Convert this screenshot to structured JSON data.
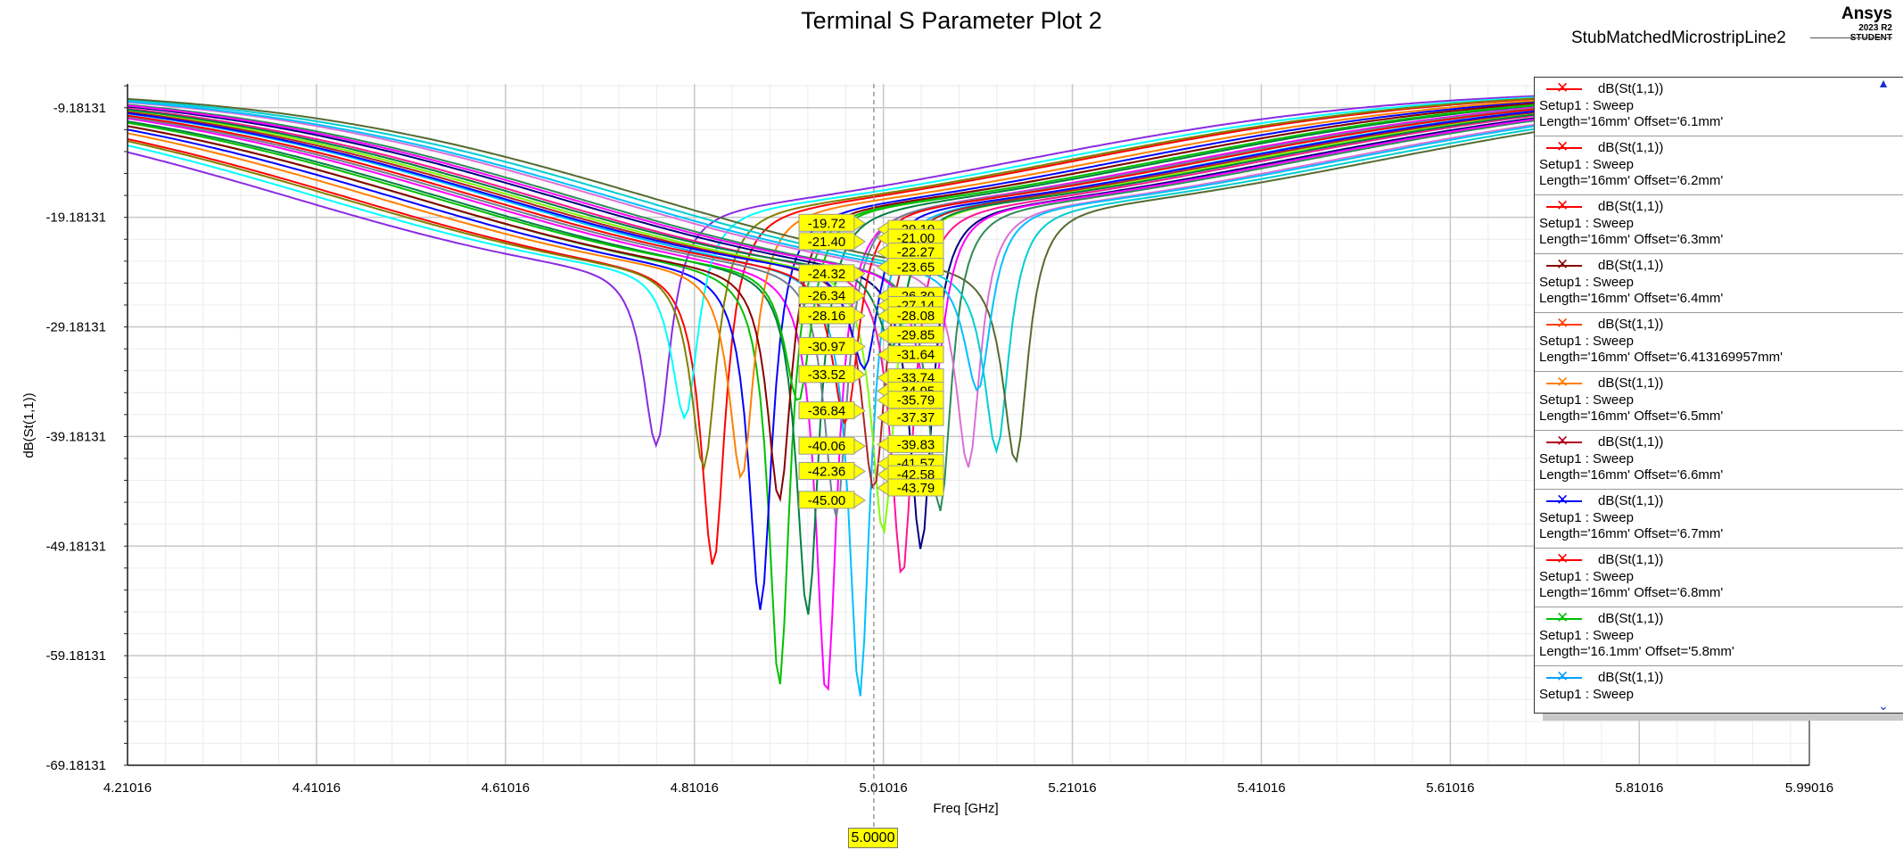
{
  "chart_data": {
    "type": "line",
    "title": "Terminal S Parameter Plot 2",
    "xlabel": "Freq [GHz]",
    "ylabel": "dB(St(1,1))",
    "xlim": [
      4.21016,
      5.99016
    ],
    "ylim": [
      -69.18131,
      -7.0
    ],
    "x_ticks": [
      "4.21016",
      "4.41016",
      "4.61016",
      "4.81016",
      "5.01016",
      "5.21016",
      "5.41016",
      "5.61016",
      "5.81016",
      "5.99016"
    ],
    "y_ticks": [
      "-9.18131",
      "-19.18131",
      "-29.18131",
      "-39.18131",
      "-49.18131",
      "-59.18131",
      "-69.18131"
    ],
    "grid": true,
    "cursor": {
      "x": 5.0,
      "label": "5.0000"
    },
    "marker_values_left": [
      "-19.72",
      "-21.40",
      "-24.32",
      "-26.34",
      "-28.16",
      "-30.97",
      "-33.52",
      "-36.84",
      "-40.06",
      "-42.36",
      "-45.00"
    ],
    "marker_values_right": [
      "-20.19",
      "-21.00",
      "-22.27",
      "-23.65",
      "-26.30",
      "-27.14",
      "-28.08",
      "-29.85",
      "-31.64",
      "-33.74",
      "-34.95",
      "-35.79",
      "-37.37",
      "-39.83",
      "-41.57",
      "-42.58",
      "-43.79"
    ],
    "series_colors": [
      "#ff0000",
      "#00c000",
      "#ff00ff",
      "#00c0ff",
      "#0000ff",
      "#008040",
      "#8a2be2",
      "#00ffff",
      "#808000",
      "#ff8000",
      "#8b0000",
      "#708090",
      "#7fff00",
      "#ff1493",
      "#000080",
      "#2e8b57",
      "#da70d6",
      "#00ced1",
      "#556b2f",
      "#b22222"
    ],
    "series_params": [
      {
        "f0": 4.83,
        "depth": -51.0,
        "w": 0.25
      },
      {
        "f0": 4.9,
        "depth": -62.0,
        "w": 0.22
      },
      {
        "f0": 4.95,
        "depth": -63.0,
        "w": 0.22
      },
      {
        "f0": 4.985,
        "depth": -63.0,
        "w": 0.22
      },
      {
        "f0": 4.88,
        "depth": -55.0,
        "w": 0.24
      },
      {
        "f0": 4.93,
        "depth": -55.5,
        "w": 0.23
      },
      {
        "f0": 4.77,
        "depth": -40.0,
        "w": 0.28
      },
      {
        "f0": 4.8,
        "depth": -37.5,
        "w": 0.28
      },
      {
        "f0": 4.82,
        "depth": -42.0,
        "w": 0.27
      },
      {
        "f0": 4.86,
        "depth": -43.0,
        "w": 0.26
      },
      {
        "f0": 4.9,
        "depth": -45.0,
        "w": 0.25
      },
      {
        "f0": 4.96,
        "depth": -46.5,
        "w": 0.24
      },
      {
        "f0": 5.01,
        "depth": -48.0,
        "w": 0.24
      },
      {
        "f0": 5.03,
        "depth": -52.0,
        "w": 0.23
      },
      {
        "f0": 5.05,
        "depth": -49.5,
        "w": 0.23
      },
      {
        "f0": 5.07,
        "depth": -46.0,
        "w": 0.24
      },
      {
        "f0": 5.1,
        "depth": -42.0,
        "w": 0.25
      },
      {
        "f0": 5.13,
        "depth": -40.5,
        "w": 0.26
      },
      {
        "f0": 5.15,
        "depth": -41.5,
        "w": 0.26
      },
      {
        "f0": 5.0,
        "depth": -44.0,
        "w": 0.25
      },
      {
        "f0": 4.97,
        "depth": -38.0,
        "w": 0.27
      },
      {
        "f0": 4.92,
        "depth": -36.0,
        "w": 0.28
      },
      {
        "f0": 5.06,
        "depth": -37.0,
        "w": 0.27
      },
      {
        "f0": 5.11,
        "depth": -35.0,
        "w": 0.28
      },
      {
        "f0": 4.99,
        "depth": -33.0,
        "w": 0.29
      },
      {
        "f0": 5.02,
        "depth": -31.0,
        "w": 0.3
      }
    ]
  },
  "header": {
    "design_name": "StubMatchedMicrostripLine2",
    "brand": "Ansys",
    "version": "2023 R2",
    "edition": "STUDENT"
  },
  "legend": {
    "items": [
      {
        "label": "dB(St(1,1))",
        "setup": "Setup1 : Sweep",
        "params": "Length='16mm' Offset='6.1mm'",
        "color": "#ff0000"
      },
      {
        "label": "dB(St(1,1))",
        "setup": "Setup1 : Sweep",
        "params": "Length='16mm' Offset='6.2mm'",
        "color": "#ff0000"
      },
      {
        "label": "dB(St(1,1))",
        "setup": "Setup1 : Sweep",
        "params": "Length='16mm' Offset='6.3mm'",
        "color": "#ff0000"
      },
      {
        "label": "dB(St(1,1))",
        "setup": "Setup1 : Sweep",
        "params": "Length='16mm' Offset='6.4mm'",
        "color": "#8b0000"
      },
      {
        "label": "dB(St(1,1))",
        "setup": "Setup1 : Sweep",
        "params": "Length='16mm' Offset='6.413169957mm'",
        "color": "#ff4000"
      },
      {
        "label": "dB(St(1,1))",
        "setup": "Setup1 : Sweep",
        "params": "Length='16mm' Offset='6.5mm'",
        "color": "#ff8000"
      },
      {
        "label": "dB(St(1,1))",
        "setup": "Setup1 : Sweep",
        "params": "Length='16mm' Offset='6.6mm'",
        "color": "#b00020"
      },
      {
        "label": "dB(St(1,1))",
        "setup": "Setup1 : Sweep",
        "params": "Length='16mm' Offset='6.7mm'",
        "color": "#0000ff"
      },
      {
        "label": "dB(St(1,1))",
        "setup": "Setup1 : Sweep",
        "params": "Length='16mm' Offset='6.8mm'",
        "color": "#ff0000"
      },
      {
        "label": "dB(St(1,1))",
        "setup": "Setup1 : Sweep",
        "params": "Length='16.1mm' Offset='5.8mm'",
        "color": "#00c000"
      },
      {
        "label": "dB(St(1,1))",
        "setup": "Setup1 : Sweep",
        "params": "",
        "color": "#00a0ff"
      }
    ]
  }
}
